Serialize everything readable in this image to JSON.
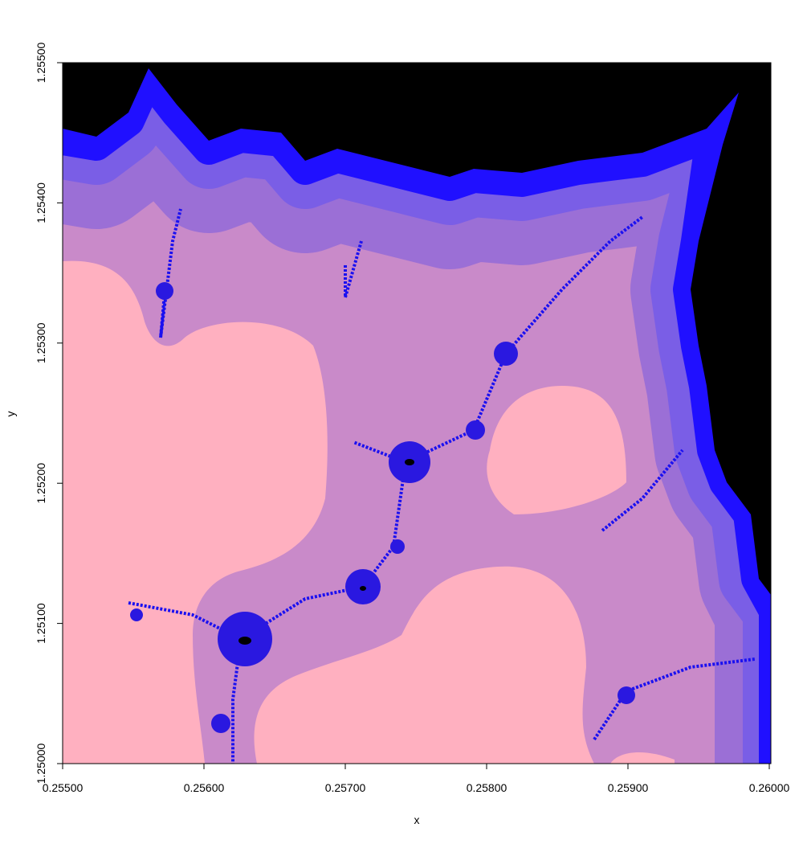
{
  "chart_data": {
    "type": "image",
    "x_label": "x",
    "y_label": "y",
    "xlim": [
      0.255,
      0.26
    ],
    "ylim": [
      1.25,
      1.255
    ],
    "xticks": [
      {
        "value": 0.255,
        "label": "0.25500"
      },
      {
        "value": 0.256,
        "label": "0.25600"
      },
      {
        "value": 0.257,
        "label": "0.25700"
      },
      {
        "value": 0.258,
        "label": "0.25800"
      },
      {
        "value": 0.259,
        "label": "0.25900"
      },
      {
        "value": 0.26,
        "label": "0.26000"
      }
    ],
    "yticks": [
      {
        "value": 1.25,
        "label": "1.25000"
      },
      {
        "value": 1.251,
        "label": "1.25100"
      },
      {
        "value": 1.252,
        "label": "1.25200"
      },
      {
        "value": 1.253,
        "label": "1.25300"
      },
      {
        "value": 1.254,
        "label": "1.25400"
      },
      {
        "value": 1.255,
        "label": "1.25500"
      }
    ]
  }
}
